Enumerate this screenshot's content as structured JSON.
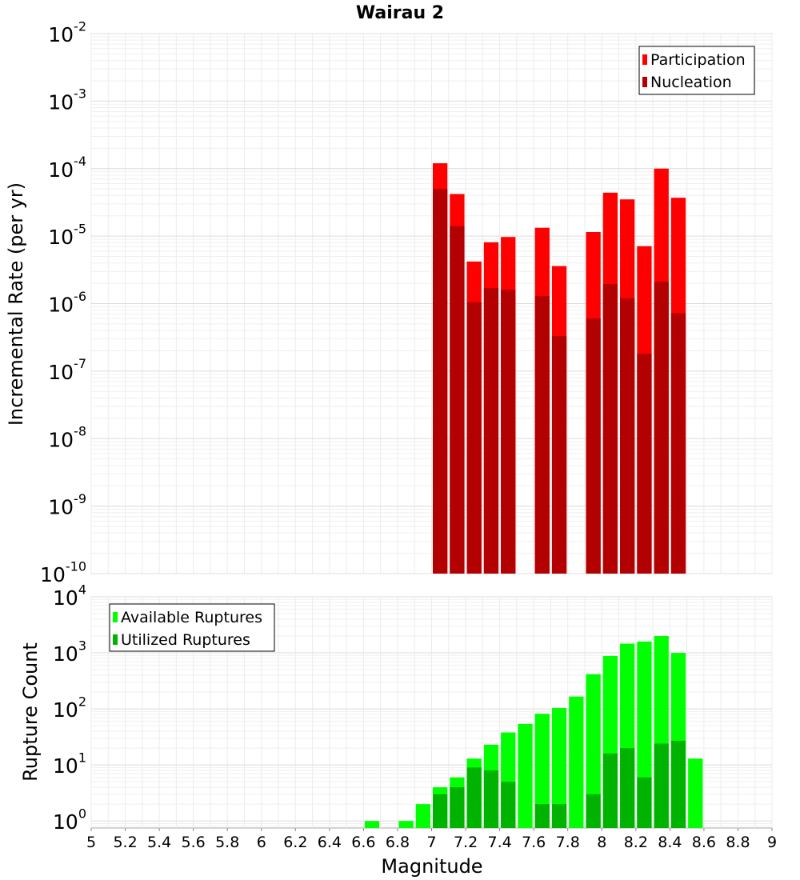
{
  "title": "Wairau 2",
  "chart_data": [
    {
      "type": "bar",
      "title": "Wairau 2",
      "ylabel": "Incremental Rate (per yr)",
      "xlabel": "",
      "scale": "log",
      "xlim": [
        5,
        9
      ],
      "ylim_exp": [
        -10,
        -2
      ],
      "y_ticks": [
        {
          "base": "10",
          "exp": "-10"
        },
        {
          "base": "10",
          "exp": "-9"
        },
        {
          "base": "10",
          "exp": "-8"
        },
        {
          "base": "10",
          "exp": "-7"
        },
        {
          "base": "10",
          "exp": "-6"
        },
        {
          "base": "10",
          "exp": "-5"
        },
        {
          "base": "10",
          "exp": "-4"
        },
        {
          "base": "10",
          "exp": "-3"
        },
        {
          "base": "10",
          "exp": "-2"
        }
      ],
      "legend": {
        "placement": "top-right",
        "items": [
          {
            "label": "Participation",
            "color": "#ff0000"
          },
          {
            "label": "Nucleation",
            "color": "#b30000"
          }
        ]
      },
      "grid": true,
      "series": [
        {
          "name": "Participation",
          "color": "#ff0000",
          "points": [
            {
              "x": 7.05,
              "y": 0.00012
            },
            {
              "x": 7.15,
              "y": 4.2e-05
            },
            {
              "x": 7.25,
              "y": 4.2e-06
            },
            {
              "x": 7.35,
              "y": 8.1e-06
            },
            {
              "x": 7.45,
              "y": 9.7e-06
            },
            {
              "x": 7.65,
              "y": 1.33e-05
            },
            {
              "x": 7.75,
              "y": 3.6e-06
            },
            {
              "x": 7.95,
              "y": 1.15e-05
            },
            {
              "x": 8.05,
              "y": 4.4e-05
            },
            {
              "x": 8.15,
              "y": 3.5e-05
            },
            {
              "x": 8.25,
              "y": 7.1e-06
            },
            {
              "x": 8.35,
              "y": 0.0001
            },
            {
              "x": 8.45,
              "y": 3.7e-05
            }
          ]
        },
        {
          "name": "Nucleation",
          "color": "#b30000",
          "points": [
            {
              "x": 7.05,
              "y": 5e-05
            },
            {
              "x": 7.15,
              "y": 1.4e-05
            },
            {
              "x": 7.25,
              "y": 1.05e-06
            },
            {
              "x": 7.35,
              "y": 1.7e-06
            },
            {
              "x": 7.45,
              "y": 1.6e-06
            },
            {
              "x": 7.65,
              "y": 1.3e-06
            },
            {
              "x": 7.75,
              "y": 3.3e-07
            },
            {
              "x": 7.95,
              "y": 6e-07
            },
            {
              "x": 8.05,
              "y": 1.95e-06
            },
            {
              "x": 8.15,
              "y": 1.2e-06
            },
            {
              "x": 8.25,
              "y": 1.8e-07
            },
            {
              "x": 8.35,
              "y": 2.1e-06
            },
            {
              "x": 8.45,
              "y": 7.2e-07
            }
          ]
        }
      ]
    },
    {
      "type": "bar",
      "title": "",
      "ylabel": "Rupture Count",
      "xlabel": "Magnitude",
      "scale": "log",
      "xlim": [
        5,
        9
      ],
      "ylim": [
        0.75,
        10000
      ],
      "y_ticks": [
        {
          "value": 1,
          "base": "10",
          "exp": "0"
        },
        {
          "value": 10,
          "base": "10",
          "exp": "1"
        },
        {
          "value": 100,
          "base": "10",
          "exp": "2"
        },
        {
          "value": 1000,
          "base": "10",
          "exp": "3"
        },
        {
          "value": 10000,
          "base": "10",
          "exp": "4"
        }
      ],
      "x_tick_labels": [
        "5",
        "5.2",
        "5.4",
        "5.6",
        "5.8",
        "6",
        "6.2",
        "6.4",
        "6.6",
        "6.8",
        "7",
        "7.2",
        "7.4",
        "7.6",
        "7.8",
        "8",
        "8.2",
        "8.4",
        "8.6",
        "8.8",
        "9"
      ],
      "legend": {
        "placement": "top-left",
        "items": [
          {
            "label": "Available Ruptures",
            "color": "#00ff00"
          },
          {
            "label": "Utilized Ruptures",
            "color": "#00b300"
          }
        ]
      },
      "grid": true,
      "series": [
        {
          "name": "Available Ruptures",
          "color": "#00ff00",
          "points": [
            {
              "x": 6.65,
              "y": 1
            },
            {
              "x": 6.85,
              "y": 1
            },
            {
              "x": 6.95,
              "y": 2
            },
            {
              "x": 7.05,
              "y": 4
            },
            {
              "x": 7.15,
              "y": 6
            },
            {
              "x": 7.25,
              "y": 13
            },
            {
              "x": 7.35,
              "y": 23
            },
            {
              "x": 7.45,
              "y": 38
            },
            {
              "x": 7.55,
              "y": 54
            },
            {
              "x": 7.65,
              "y": 82
            },
            {
              "x": 7.75,
              "y": 104
            },
            {
              "x": 7.85,
              "y": 166
            },
            {
              "x": 7.95,
              "y": 417
            },
            {
              "x": 8.05,
              "y": 880
            },
            {
              "x": 8.15,
              "y": 1460
            },
            {
              "x": 8.25,
              "y": 1590
            },
            {
              "x": 8.35,
              "y": 2000
            },
            {
              "x": 8.45,
              "y": 1000
            },
            {
              "x": 8.55,
              "y": 13
            }
          ]
        },
        {
          "name": "Utilized Ruptures",
          "color": "#00b300",
          "points": [
            {
              "x": 7.05,
              "y": 3
            },
            {
              "x": 7.15,
              "y": 4
            },
            {
              "x": 7.25,
              "y": 9
            },
            {
              "x": 7.35,
              "y": 8
            },
            {
              "x": 7.45,
              "y": 5
            },
            {
              "x": 7.65,
              "y": 2
            },
            {
              "x": 7.75,
              "y": 2
            },
            {
              "x": 7.95,
              "y": 3
            },
            {
              "x": 8.05,
              "y": 16
            },
            {
              "x": 8.15,
              "y": 20
            },
            {
              "x": 8.25,
              "y": 6
            },
            {
              "x": 8.35,
              "y": 24
            },
            {
              "x": 8.45,
              "y": 27
            }
          ]
        }
      ]
    }
  ]
}
